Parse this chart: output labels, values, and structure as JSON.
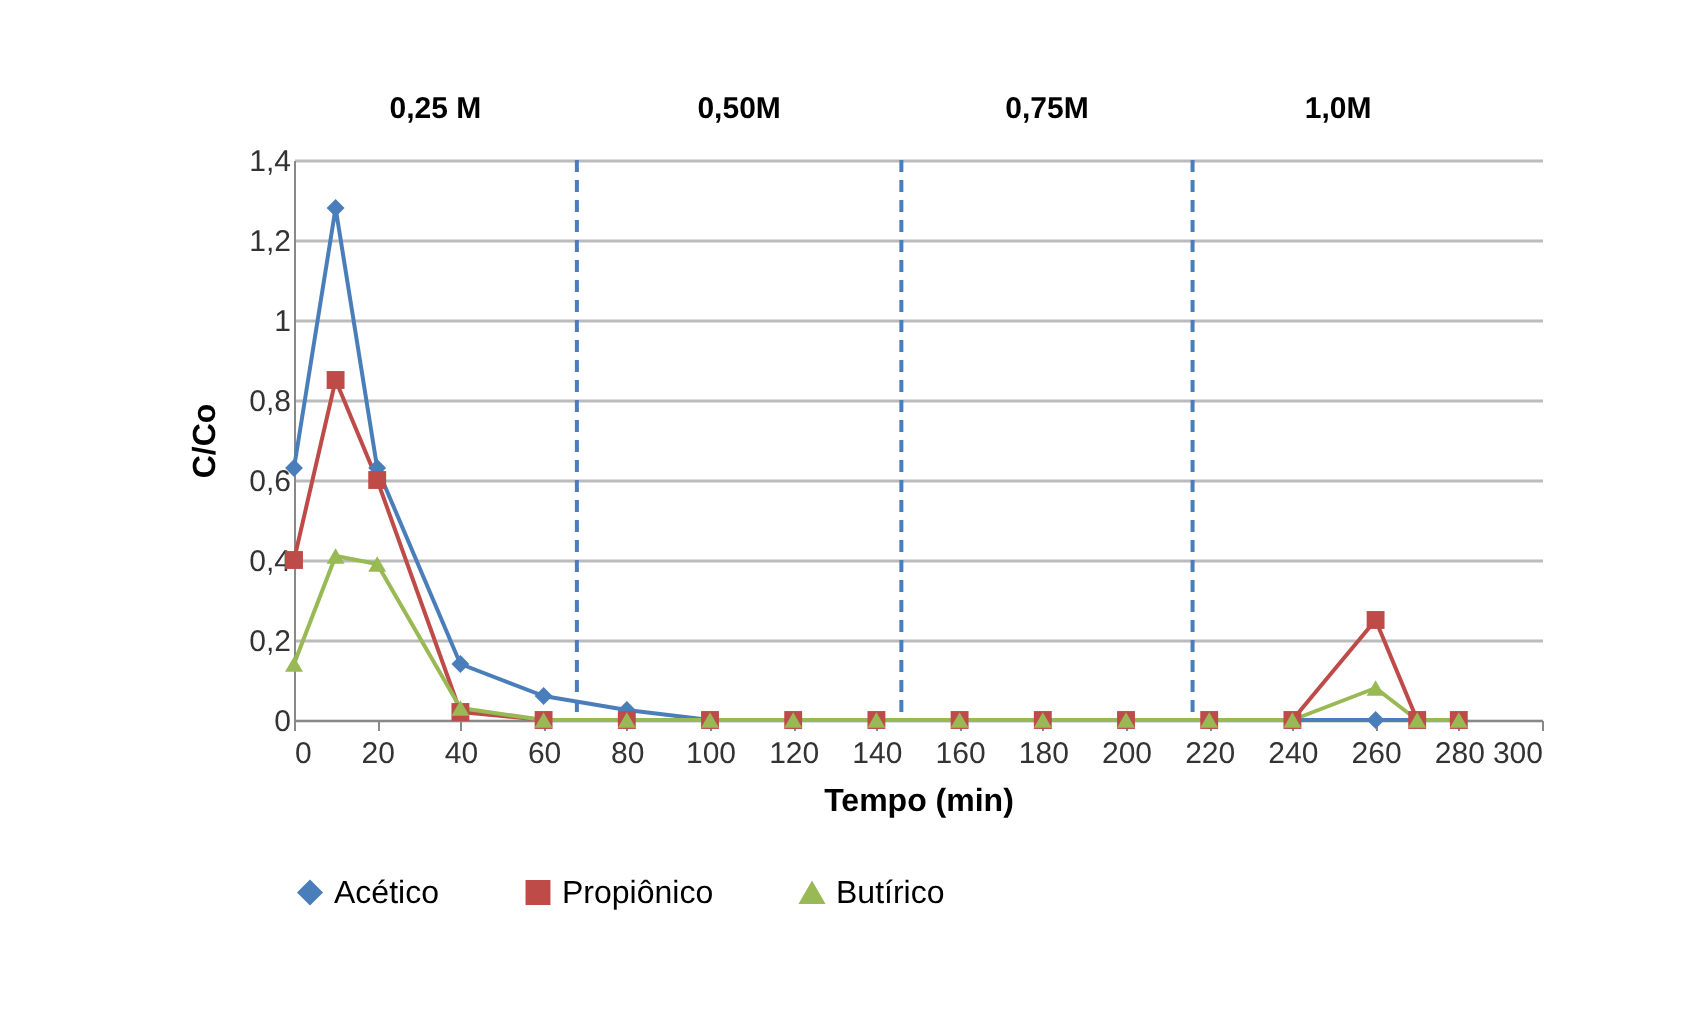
{
  "chart_data": {
    "type": "line",
    "xlabel": "Tempo (min)",
    "ylabel": "C/Co",
    "x": [
      0,
      10,
      20,
      40,
      60,
      80,
      100,
      120,
      140,
      160,
      180,
      200,
      220,
      240,
      260,
      270,
      280
    ],
    "series": [
      {
        "name": "Acético",
        "color": "#4a7ebb",
        "marker": "diamond",
        "values": [
          0.63,
          1.28,
          0.63,
          0.14,
          0.06,
          0.025,
          0,
          0,
          0,
          0,
          0,
          0,
          0,
          0,
          0,
          0,
          0
        ]
      },
      {
        "name": "Propiônico",
        "color": "#be4b48",
        "marker": "square",
        "values": [
          0.4,
          0.85,
          0.6,
          0.02,
          0,
          0,
          0,
          0,
          0,
          0,
          0,
          0,
          0,
          0,
          0.25,
          0,
          0
        ]
      },
      {
        "name": "Butírico",
        "color": "#98b954",
        "marker": "triangle",
        "values": [
          0.14,
          0.41,
          0.39,
          0.03,
          0,
          0,
          0,
          0,
          0,
          0,
          0,
          0,
          0,
          0,
          0.08,
          0,
          0
        ]
      }
    ],
    "xlim": [
      0,
      300
    ],
    "xticks": [
      0,
      20,
      40,
      60,
      80,
      100,
      120,
      140,
      160,
      180,
      200,
      220,
      240,
      260,
      280,
      300
    ],
    "ylim": [
      0,
      1.4
    ],
    "yticks": [
      0,
      {
        "value": 0.2,
        "label": "0,2"
      },
      {
        "value": 0.4,
        "label": "0,4"
      },
      {
        "value": 0.6,
        "label": "0,6"
      },
      {
        "value": 0.8,
        "label": "0,8"
      },
      1,
      {
        "value": 1.2,
        "label": "1,2"
      },
      {
        "value": 1.4,
        "label": "1,4"
      }
    ],
    "ref_lines": [
      {
        "axis": "x",
        "value": 68,
        "color": "#4a7ebb",
        "line_style": "dashed"
      },
      {
        "axis": "x",
        "value": 146,
        "color": "#4a7ebb",
        "line_style": "dashed"
      },
      {
        "axis": "x",
        "value": 216,
        "color": "#4a7ebb",
        "line_style": "dashed"
      }
    ],
    "annotations": [
      "0,25 M",
      "0,50M",
      "0,75M",
      "1,0M"
    ],
    "grid": "y",
    "legend": "bottom",
    "line_style": "solid"
  }
}
